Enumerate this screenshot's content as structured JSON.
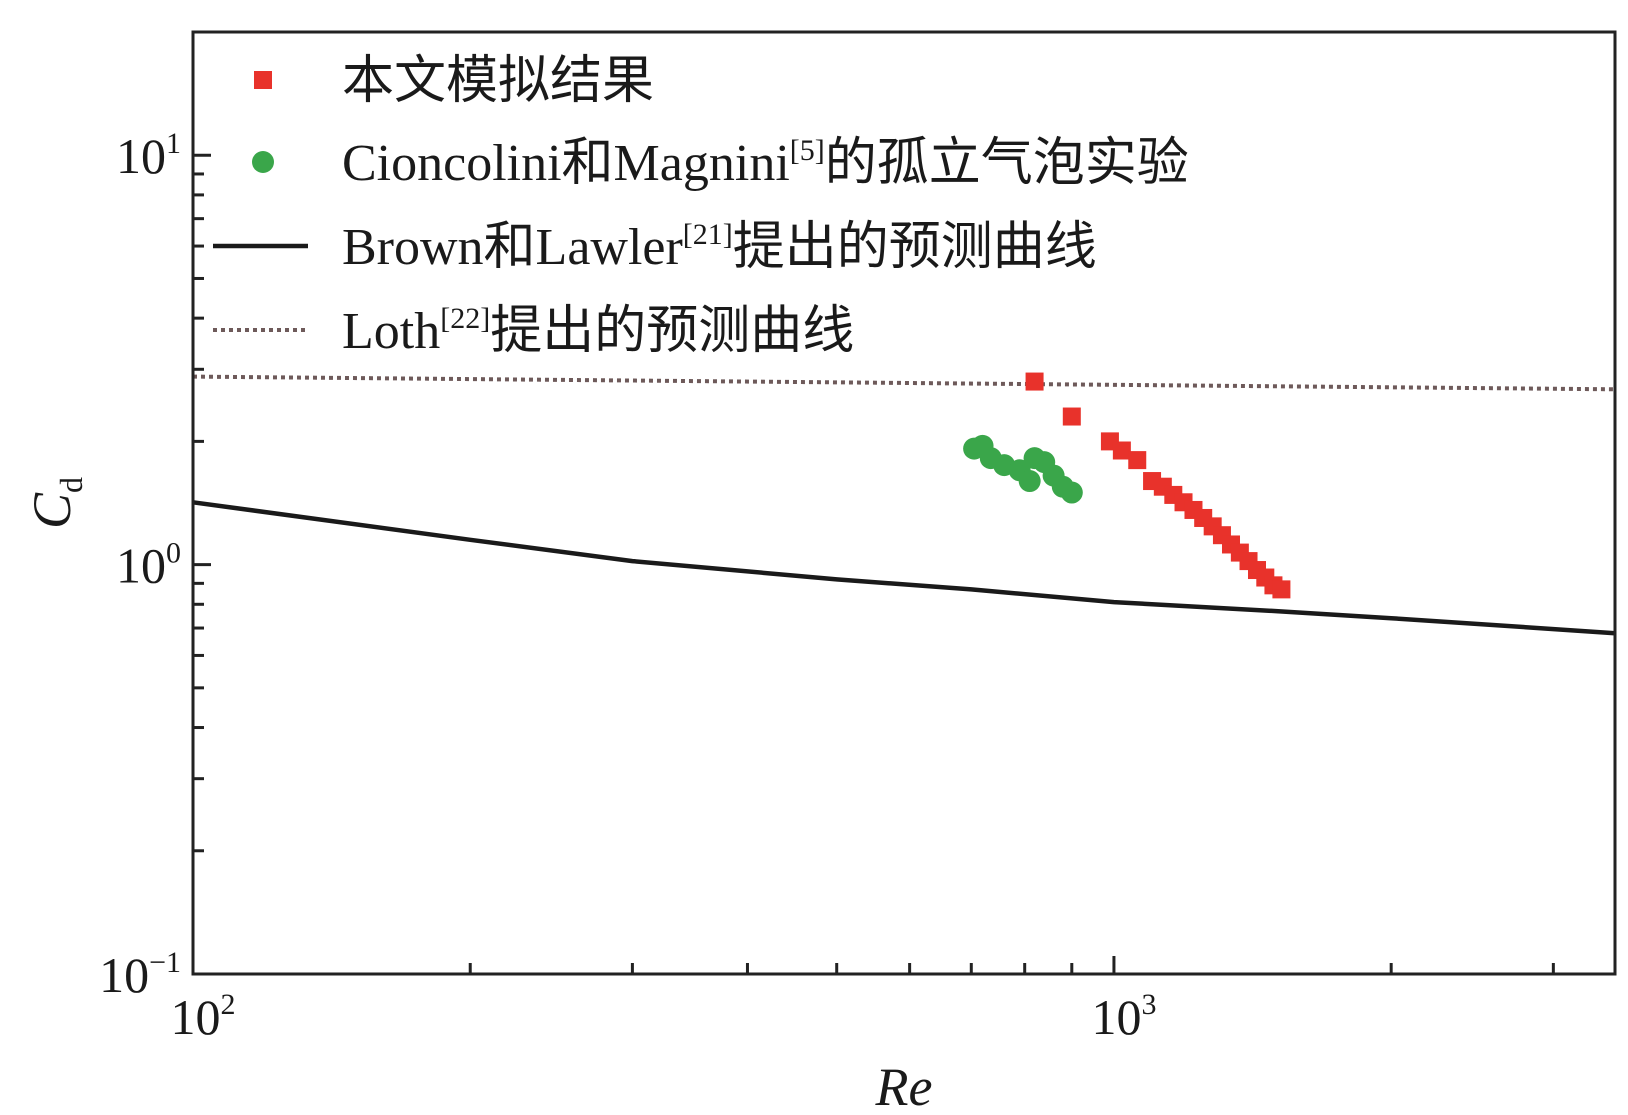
{
  "chart_data": {
    "type": "scatter",
    "title": "",
    "xlabel": "Re",
    "ylabel": {
      "main": "C",
      "sub": "d"
    },
    "x_scale": "log",
    "y_scale": "log",
    "xlim": [
      100,
      3500
    ],
    "ylim": [
      0.1,
      20
    ],
    "x_ticks": [
      {
        "base": "10",
        "exp": "2"
      },
      {
        "base": "10",
        "exp": "3"
      }
    ],
    "y_ticks": [
      {
        "base": "10",
        "exp": "−1"
      },
      {
        "base": "10",
        "exp": "0"
      },
      {
        "base": "10",
        "exp": "1"
      }
    ],
    "grid": false,
    "legend_position": "top-left",
    "series": [
      {
        "name": "本文模拟结果",
        "kind": "markers",
        "marker": "square",
        "color": "#e8322b",
        "points": [
          [
            820,
            2.8
          ],
          [
            900,
            2.3
          ],
          [
            990,
            2.0
          ],
          [
            1020,
            1.9
          ],
          [
            1060,
            1.8
          ],
          [
            1100,
            1.6
          ],
          [
            1130,
            1.55
          ],
          [
            1160,
            1.48
          ],
          [
            1190,
            1.42
          ],
          [
            1220,
            1.36
          ],
          [
            1250,
            1.3
          ],
          [
            1280,
            1.24
          ],
          [
            1310,
            1.18
          ],
          [
            1340,
            1.12
          ],
          [
            1370,
            1.07
          ],
          [
            1400,
            1.02
          ],
          [
            1430,
            0.97
          ],
          [
            1460,
            0.93
          ],
          [
            1490,
            0.89
          ],
          [
            1520,
            0.87
          ]
        ]
      },
      {
        "name": "Cioncolini和Magnini[5]的孤立气泡实验",
        "kind": "markers",
        "marker": "circle",
        "color": "#3aa64a",
        "points": [
          [
            705,
            1.92
          ],
          [
            720,
            1.95
          ],
          [
            735,
            1.82
          ],
          [
            760,
            1.75
          ],
          [
            790,
            1.7
          ],
          [
            810,
            1.6
          ],
          [
            820,
            1.82
          ],
          [
            840,
            1.78
          ],
          [
            860,
            1.65
          ],
          [
            880,
            1.55
          ],
          [
            900,
            1.5
          ]
        ]
      },
      {
        "name": "Brown和Lawler[21]提出的预测曲线",
        "kind": "line",
        "style": "solid",
        "color": "#1a1a1a",
        "points": [
          [
            100,
            1.42
          ],
          [
            200,
            1.15
          ],
          [
            300,
            1.02
          ],
          [
            500,
            0.92
          ],
          [
            700,
            0.87
          ],
          [
            1000,
            0.81
          ],
          [
            1500,
            0.77
          ],
          [
            2000,
            0.74
          ],
          [
            3500,
            0.68
          ]
        ]
      },
      {
        "name": "Loth[22]提出的预测曲线",
        "kind": "line",
        "style": "dotted",
        "color": "#6e5a5a",
        "points": [
          [
            100,
            2.88
          ],
          [
            3500,
            2.68
          ]
        ]
      }
    ]
  },
  "legend": [
    {
      "text": "本文模拟结果",
      "sup": "",
      "rest": ""
    },
    {
      "text": "Cioncolini和Magnini",
      "sup": "[5]",
      "rest": "的孤立气泡实验"
    },
    {
      "text": "Brown和Lawler",
      "sup": "[21]",
      "rest": "提出的预测曲线"
    },
    {
      "text": "Loth",
      "sup": "[22]",
      "rest": "提出的预测曲线"
    }
  ]
}
